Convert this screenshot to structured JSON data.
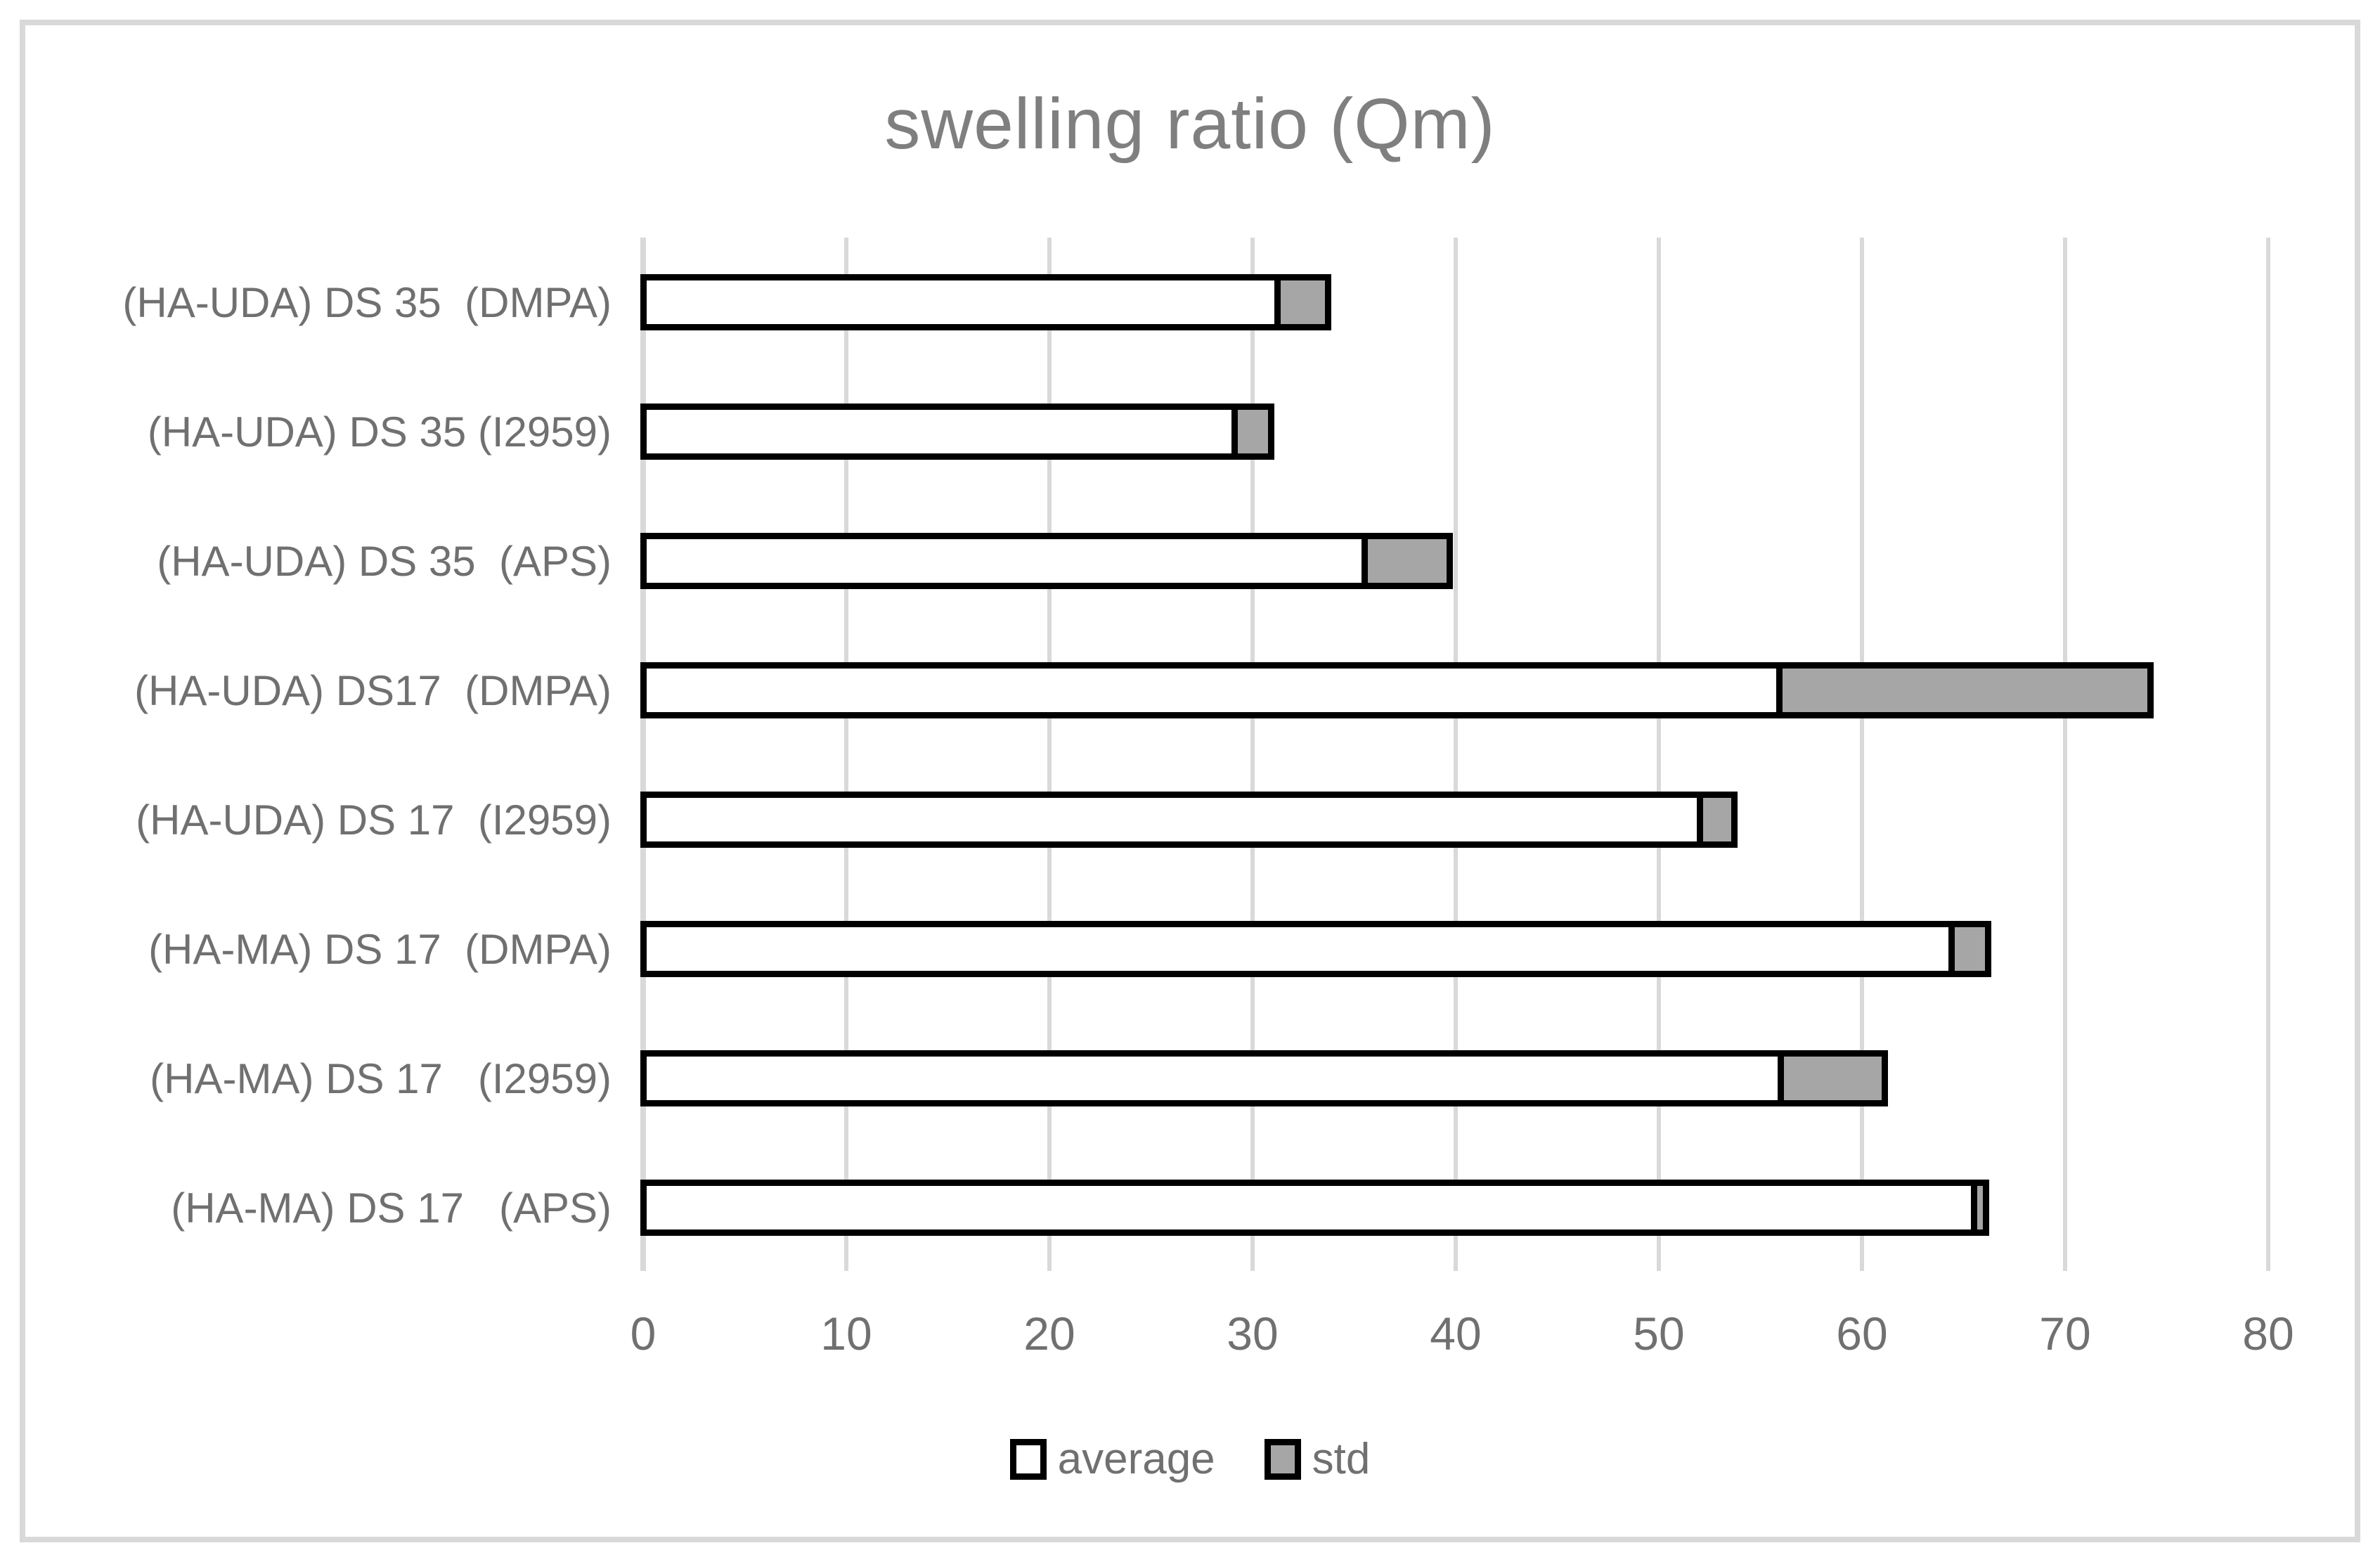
{
  "chart_data": {
    "type": "bar",
    "orientation": "horizontal",
    "stacked": true,
    "title": "swelling ratio (Qm)",
    "categories": [
      "(HA-UDA) DS 35  (DMPA)",
      "(HA-UDA) DS 35 (I2959)",
      "(HA-UDA) DS 35  (APS)",
      "(HA-UDA) DS17  (DMPA)",
      "(HA-UDA) DS 17  (I2959)",
      "(HA-MA) DS 17  (DMPA)",
      "(HA-MA) DS 17   (I2959)",
      "(HA-MA) DS 17   (APS)"
    ],
    "series": [
      {
        "name": "average",
        "color": "#ffffff",
        "values": [
          31.2,
          29.1,
          35.5,
          55.9,
          52.0,
          64.4,
          56.0,
          65.5
        ]
      },
      {
        "name": "std",
        "color": "#a6a6a6",
        "values": [
          2.5,
          1.8,
          4.2,
          18.3,
          1.7,
          1.8,
          5.1,
          0.6
        ]
      }
    ],
    "xlabel": "",
    "ylabel": "",
    "xlim": [
      0,
      80
    ],
    "x_ticks": [
      0,
      10,
      20,
      30,
      40,
      50,
      60,
      70,
      80
    ],
    "grid": true,
    "legend_position": "bottom",
    "legend_labels": [
      "average",
      "std"
    ],
    "colors": {
      "bar_border": "#000000",
      "std_fill": "#a6a6a6",
      "average_fill": "#ffffff",
      "gridline": "#d9d9d9",
      "axis_line": "#d9d9d9",
      "tick_text": "#707070",
      "category_text": "#707070",
      "title_text": "#7f7f7f",
      "chart_frame": "#d9d9d9"
    }
  }
}
